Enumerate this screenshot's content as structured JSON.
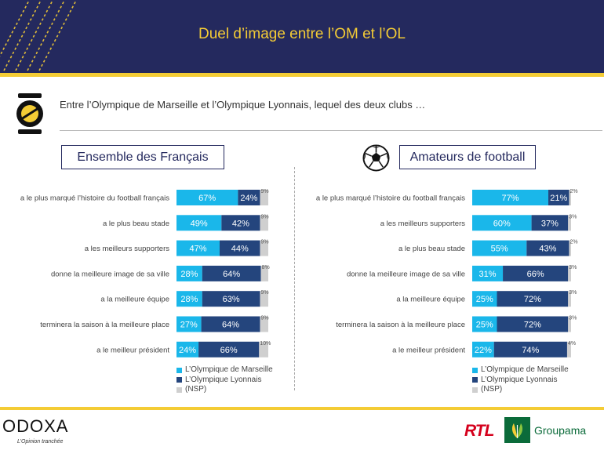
{
  "header": {
    "title": "Duel d’image entre l’OM et l’OL"
  },
  "question": {
    "text": "Entre l’Olympique de Marseille et l’Olympique Lyonnais, lequel des deux clubs …"
  },
  "colors": {
    "navy": "#24295e",
    "yellow": "#f4cc35",
    "om": "#1ab7ea",
    "ol": "#24457d",
    "nsp": "#cfcfcf"
  },
  "icons": {
    "question": "speech-bubble-icon",
    "panel_right": "soccer-ball-icon",
    "sponsor": "groupama-leaf-icon"
  },
  "legend": {
    "om": "L’Olympique de Marseille",
    "ol": "L’Olympique Lyonnais",
    "nsp": "(NSP)"
  },
  "chart_data": [
    {
      "type": "bar",
      "orientation": "horizontal",
      "stacked": true,
      "title": "Ensemble des Français",
      "categories": [
        "a le plus marqué l’histoire du football français",
        "a le plus beau stade",
        "a les meilleurs supporters",
        "donne la meilleure image de sa ville",
        "a la meilleure équipe",
        "terminera la saison à la meilleure place",
        "a le meilleur président"
      ],
      "series": [
        {
          "name": "L’Olympique de Marseille",
          "values": [
            67,
            49,
            47,
            28,
            28,
            27,
            24
          ],
          "labels": [
            "67%",
            "49%",
            "47%",
            "28%",
            "28%",
            "27%",
            "24%"
          ]
        },
        {
          "name": "L’Olympique Lyonnais",
          "values": [
            24,
            42,
            44,
            64,
            63,
            64,
            66
          ],
          "labels": [
            "24%",
            "42%",
            "44%",
            "64%",
            "63%",
            "64%",
            "66%"
          ]
        },
        {
          "name": "(NSP)",
          "values": [
            9,
            9,
            9,
            8,
            9,
            9,
            10
          ],
          "labels": [
            "9%",
            "9%",
            "9%",
            "8%",
            "9%",
            "9%",
            "10%"
          ]
        }
      ],
      "xlim": [
        0,
        100
      ],
      "legend_position": "bottom"
    },
    {
      "type": "bar",
      "orientation": "horizontal",
      "stacked": true,
      "title": "Amateurs de football",
      "categories": [
        "a le plus marqué l’histoire du football français",
        "a les meilleurs supporters",
        "a le plus beau stade",
        "donne la meilleure image de sa ville",
        "a la meilleure équipe",
        "terminera la saison à la meilleure place",
        "a le meilleur président"
      ],
      "series": [
        {
          "name": "L’Olympique de Marseille",
          "values": [
            77,
            60,
            55,
            31,
            25,
            25,
            22
          ],
          "labels": [
            "77%",
            "60%",
            "55%",
            "31%",
            "25%",
            "25%",
            "22%"
          ]
        },
        {
          "name": "L’Olympique Lyonnais",
          "values": [
            21,
            37,
            43,
            66,
            72,
            72,
            74
          ],
          "labels": [
            "21%",
            "37%",
            "43%",
            "66%",
            "72%",
            "72%",
            "74%"
          ]
        },
        {
          "name": "(NSP)",
          "values": [
            2,
            3,
            2,
            3,
            3,
            3,
            4
          ],
          "labels": [
            "2%",
            "3%",
            "2%",
            "3%",
            "3%",
            "3%",
            "4%"
          ]
        }
      ],
      "xlim": [
        0,
        100
      ],
      "legend_position": "bottom"
    }
  ],
  "footer": {
    "brand": "ODOXA",
    "tagline": "L’Opinion tranchée",
    "partner_1": "RTL",
    "partner_2": "Groupama"
  }
}
